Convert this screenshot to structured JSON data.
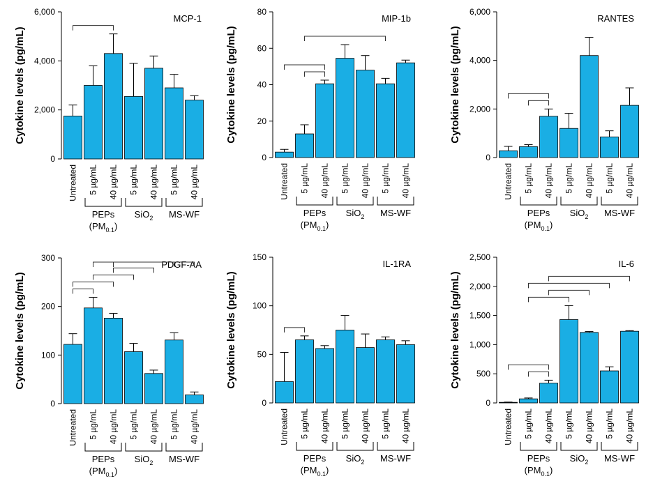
{
  "colors": {
    "bar": "#1aaee4",
    "outline": "#000000",
    "bracket": "#333333"
  },
  "chart_data": [
    {
      "type": "bar",
      "title": "MCP-1",
      "ylabel": "Cytokine levels (pg/mL)",
      "ylim": [
        0,
        6000
      ],
      "yticks": [
        "0",
        "2,000",
        "4,000",
        "6,000"
      ],
      "ytick_values": [
        0,
        2000,
        4000,
        6000
      ],
      "categories": [
        "Untreated",
        "5 µg/mL",
        "40 µg/mL",
        "5 µg/mL",
        "40 µg/mL",
        "5 µg/mL",
        "40 µg/mL"
      ],
      "values": [
        1750,
        3000,
        4300,
        2550,
        3700,
        2900,
        2400
      ],
      "errors": [
        450,
        800,
        800,
        1350,
        500,
        550,
        180
      ],
      "groups": [
        {
          "name": "PEPs",
          "sub_prefix": "(PM",
          "sub": "0.1",
          "sub_suffix": ")",
          "from": 1,
          "to": 2
        },
        {
          "name": "SiO",
          "sub": "2",
          "from": 3,
          "to": 4
        },
        {
          "name": "MS-WF",
          "from": 5,
          "to": 6
        }
      ],
      "significance": [
        {
          "from": 0,
          "to": 2
        }
      ]
    },
    {
      "type": "bar",
      "title": "MIP-1b",
      "ylabel": "Cytokine levels (pg/mL)",
      "ylim": [
        0,
        80
      ],
      "yticks": [
        "0",
        "20",
        "40",
        "60",
        "80"
      ],
      "ytick_values": [
        0,
        20,
        40,
        60,
        80
      ],
      "categories": [
        "Untreated",
        "5 µg/mL",
        "40 µg/mL",
        "5 µg/mL",
        "40 µg/mL",
        "5 µg/mL",
        "40 µg/mL"
      ],
      "values": [
        3,
        13,
        40.5,
        54.5,
        48,
        40.5,
        52
      ],
      "errors": [
        1.5,
        5,
        2,
        7.5,
        8,
        3,
        1.5
      ],
      "groups": [
        {
          "name": "PEPs",
          "sub_prefix": "(PM",
          "sub": "0.1",
          "sub_suffix": ")",
          "from": 1,
          "to": 2
        },
        {
          "name": "SiO",
          "sub": "2",
          "from": 3,
          "to": 4
        },
        {
          "name": "MS-WF",
          "from": 5,
          "to": 6
        }
      ],
      "significance": [
        {
          "from": 0,
          "to": 2
        },
        {
          "from": 1,
          "to": 2
        },
        {
          "from": 1,
          "to": 5
        }
      ]
    },
    {
      "type": "bar",
      "title": "RANTES",
      "ylabel": "Cytokine levels (pg/mL)",
      "ylim": [
        0,
        6000
      ],
      "yticks": [
        "0",
        "2,000",
        "4,000",
        "6,000"
      ],
      "ytick_values": [
        0,
        2000,
        4000,
        6000
      ],
      "categories": [
        "Untreated",
        "5 µg/mL",
        "40 µg/mL",
        "5 µg/mL",
        "40 µg/mL",
        "5 µg/mL",
        "40 µg/mL"
      ],
      "values": [
        280,
        450,
        1700,
        1200,
        4200,
        850,
        2150
      ],
      "errors": [
        180,
        80,
        300,
        620,
        750,
        250,
        720
      ],
      "groups": [
        {
          "name": "PEPs",
          "sub_prefix": "(PM",
          "sub": "0.1",
          "sub_suffix": ")",
          "from": 1,
          "to": 2
        },
        {
          "name": "SiO",
          "sub": "2",
          "from": 3,
          "to": 4
        },
        {
          "name": "MS-WF",
          "from": 5,
          "to": 6
        }
      ],
      "significance": [
        {
          "from": 0,
          "to": 2
        },
        {
          "from": 1,
          "to": 2
        }
      ]
    },
    {
      "type": "bar",
      "title": "PDGF-AA",
      "ylabel": "Cytokine levels (pg/mL)",
      "ylim": [
        0,
        300
      ],
      "yticks": [
        "0",
        "100",
        "200",
        "300"
      ],
      "ytick_values": [
        0,
        100,
        200,
        300
      ],
      "categories": [
        "Untreated",
        "5 µg/mL",
        "40 µg/mL",
        "5 µg/mL",
        "40 µg/mL",
        "5 µg/mL",
        "40 µg/mL"
      ],
      "values": [
        122,
        197,
        176,
        107,
        62,
        131,
        18
      ],
      "errors": [
        22,
        22,
        10,
        17,
        7,
        15,
        6
      ],
      "groups": [
        {
          "name": "PEPs",
          "sub_prefix": "(PM",
          "sub": "0.1",
          "sub_suffix": ")",
          "from": 1,
          "to": 2
        },
        {
          "name": "SiO",
          "sub": "2",
          "from": 3,
          "to": 4
        },
        {
          "name": "MS-WF",
          "from": 5,
          "to": 6
        }
      ],
      "significance": [
        {
          "from": 0,
          "to": 2
        },
        {
          "from": 0,
          "to": 1
        },
        {
          "from": 1,
          "to": 3
        },
        {
          "from": 1,
          "to": 5
        },
        {
          "from": 2,
          "to": 4
        },
        {
          "from": 2,
          "to": 6
        }
      ]
    },
    {
      "type": "bar",
      "title": "IL-1RA",
      "ylabel": "Cytokine levels (pg/mL)",
      "ylim": [
        0,
        150
      ],
      "yticks": [
        "0",
        "50",
        "100",
        "150"
      ],
      "ytick_values": [
        0,
        50,
        100,
        150
      ],
      "categories": [
        "Untreated",
        "5 µg/mL",
        "40 µg/mL",
        "5 µg/mL",
        "40 µg/mL",
        "5 µg/mL",
        "40 µg/mL"
      ],
      "values": [
        22,
        65,
        56,
        75,
        57,
        65,
        60
      ],
      "errors": [
        30,
        4,
        3,
        15,
        14,
        3,
        4
      ],
      "groups": [
        {
          "name": "PEPs",
          "sub_prefix": "(PM",
          "sub": "0.1",
          "sub_suffix": ")",
          "from": 1,
          "to": 2
        },
        {
          "name": "SiO",
          "sub": "2",
          "from": 3,
          "to": 4
        },
        {
          "name": "MS-WF",
          "from": 5,
          "to": 6
        }
      ],
      "significance": [
        {
          "from": 0,
          "to": 1
        }
      ]
    },
    {
      "type": "bar",
      "title": "IL-6",
      "ylabel": "Cytokine levels (pg/mL)",
      "ylim": [
        0,
        2500
      ],
      "yticks": [
        "0",
        "500",
        "1,000",
        "1,500",
        "2,000",
        "2,500"
      ],
      "ytick_values": [
        0,
        500,
        1000,
        1500,
        2000,
        2500
      ],
      "categories": [
        "Untreated",
        "5 µg/mL",
        "40 µg/mL",
        "5 µg/mL",
        "40 µg/mL",
        "5 µg/mL",
        "40 µg/mL"
      ],
      "values": [
        10,
        70,
        340,
        1430,
        1210,
        550,
        1230
      ],
      "errors": [
        5,
        15,
        50,
        240,
        15,
        70,
        10
      ],
      "groups": [
        {
          "name": "PEPs",
          "sub_prefix": "(PM",
          "sub": "0.1",
          "sub_suffix": ")",
          "from": 1,
          "to": 2
        },
        {
          "name": "SiO",
          "sub": "2",
          "from": 3,
          "to": 4
        },
        {
          "name": "MS-WF",
          "from": 5,
          "to": 6
        }
      ],
      "significance": [
        {
          "from": 0,
          "to": 2
        },
        {
          "from": 1,
          "to": 2
        },
        {
          "from": 1,
          "to": 3
        },
        {
          "from": 1,
          "to": 5
        },
        {
          "from": 2,
          "to": 4
        },
        {
          "from": 2,
          "to": 6
        }
      ]
    }
  ]
}
